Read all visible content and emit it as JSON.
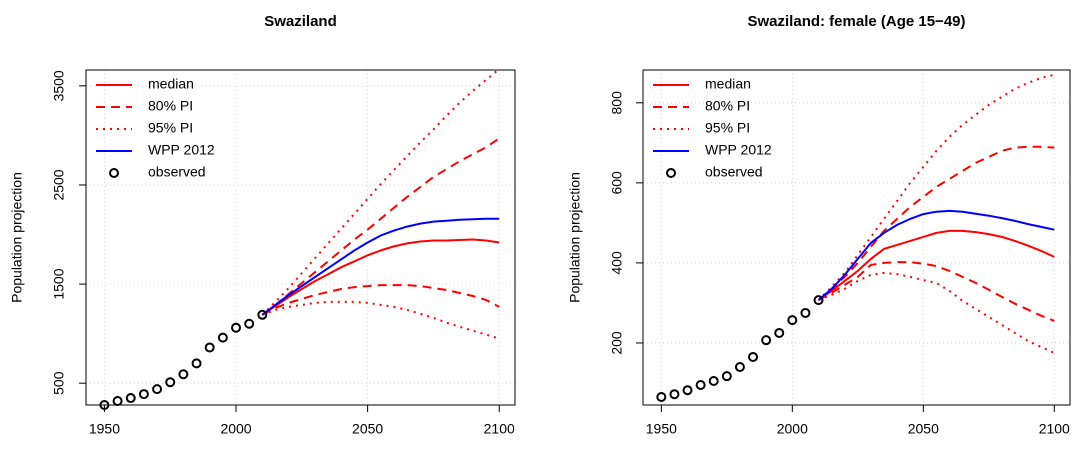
{
  "chart_data": [
    {
      "type": "line",
      "title": "Swaziland",
      "ylabel": "Population projection",
      "xlim": [
        1943,
        2106
      ],
      "xticks": [
        1950,
        2000,
        2050,
        2100
      ],
      "ylim": [
        280,
        3660
      ],
      "yticks": [
        500,
        1500,
        2500,
        3500
      ],
      "grid": true,
      "legend": "top-left",
      "series": [
        {
          "name": "median",
          "color": "#ff0000",
          "style": "solid",
          "x": [
            2010,
            2015,
            2020,
            2025,
            2030,
            2035,
            2040,
            2045,
            2050,
            2055,
            2060,
            2065,
            2070,
            2075,
            2080,
            2085,
            2090,
            2095,
            2100
          ],
          "values": [
            1190,
            1280,
            1370,
            1450,
            1530,
            1600,
            1670,
            1730,
            1790,
            1840,
            1880,
            1910,
            1930,
            1940,
            1940,
            1945,
            1950,
            1940,
            1920
          ]
        },
        {
          "name": "80% PI",
          "color": "#ff0000",
          "style": "dashed",
          "x": [
            2010,
            2015,
            2020,
            2025,
            2030,
            2035,
            2040,
            2045,
            2050,
            2055,
            2060,
            2065,
            2070,
            2075,
            2080,
            2085,
            2090,
            2095,
            2100
          ],
          "upper": [
            1190,
            1290,
            1400,
            1510,
            1620,
            1730,
            1840,
            1950,
            2050,
            2160,
            2270,
            2380,
            2480,
            2580,
            2660,
            2740,
            2810,
            2880,
            2970
          ],
          "lower": [
            1190,
            1260,
            1310,
            1350,
            1390,
            1420,
            1450,
            1470,
            1480,
            1490,
            1490,
            1490,
            1480,
            1460,
            1440,
            1410,
            1380,
            1340,
            1270
          ]
        },
        {
          "name": "95% PI",
          "color": "#ff0000",
          "style": "dotted",
          "x": [
            2010,
            2015,
            2020,
            2025,
            2030,
            2035,
            2040,
            2045,
            2050,
            2055,
            2060,
            2065,
            2070,
            2075,
            2080,
            2085,
            2090,
            2095,
            2100
          ],
          "upper": [
            1190,
            1320,
            1460,
            1610,
            1760,
            1910,
            2060,
            2210,
            2360,
            2510,
            2650,
            2790,
            2930,
            3060,
            3200,
            3330,
            3450,
            3560,
            3670
          ],
          "lower": [
            1190,
            1240,
            1270,
            1290,
            1310,
            1320,
            1320,
            1320,
            1310,
            1290,
            1270,
            1240,
            1200,
            1160,
            1110,
            1070,
            1030,
            990,
            950
          ]
        },
        {
          "name": "WPP 2012",
          "color": "#0000ff",
          "style": "solid",
          "x": [
            2010,
            2015,
            2020,
            2025,
            2030,
            2035,
            2040,
            2045,
            2050,
            2055,
            2060,
            2065,
            2070,
            2075,
            2080,
            2085,
            2090,
            2095,
            2100
          ],
          "values": [
            1190,
            1290,
            1390,
            1480,
            1570,
            1660,
            1750,
            1840,
            1920,
            1990,
            2040,
            2080,
            2110,
            2130,
            2140,
            2150,
            2155,
            2160,
            2160
          ]
        },
        {
          "name": "observed",
          "color": "#000000",
          "style": "points",
          "x": [
            1950,
            1955,
            1960,
            1965,
            1970,
            1975,
            1980,
            1985,
            1990,
            1995,
            2000,
            2005,
            2010
          ],
          "values": [
            280,
            320,
            350,
            390,
            440,
            510,
            590,
            700,
            860,
            960,
            1060,
            1100,
            1190
          ]
        }
      ]
    },
    {
      "type": "line",
      "title": "Swaziland: female (Age 15−49)",
      "ylabel": "Population projection",
      "xlim": [
        1943,
        2106
      ],
      "xticks": [
        1950,
        2000,
        2050,
        2100
      ],
      "ylim": [
        45,
        882
      ],
      "yticks": [
        200,
        400,
        600,
        800
      ],
      "grid": true,
      "legend": "top-left",
      "series": [
        {
          "name": "median",
          "color": "#ff0000",
          "style": "solid",
          "x": [
            2010,
            2015,
            2020,
            2025,
            2030,
            2035,
            2040,
            2045,
            2050,
            2055,
            2060,
            2065,
            2070,
            2075,
            2080,
            2085,
            2090,
            2095,
            2100
          ],
          "values": [
            307,
            330,
            355,
            380,
            410,
            435,
            445,
            455,
            465,
            475,
            480,
            480,
            477,
            472,
            465,
            455,
            443,
            430,
            415
          ]
        },
        {
          "name": "80% PI",
          "color": "#ff0000",
          "style": "dashed",
          "x": [
            2010,
            2015,
            2020,
            2025,
            2030,
            2035,
            2040,
            2045,
            2050,
            2055,
            2060,
            2065,
            2070,
            2075,
            2080,
            2085,
            2090,
            2095,
            2100
          ],
          "upper": [
            307,
            335,
            365,
            400,
            440,
            480,
            510,
            540,
            565,
            590,
            610,
            630,
            650,
            665,
            680,
            688,
            690,
            690,
            688
          ],
          "lower": [
            307,
            325,
            345,
            365,
            395,
            400,
            402,
            402,
            398,
            392,
            380,
            365,
            350,
            333,
            315,
            298,
            283,
            268,
            255
          ]
        },
        {
          "name": "95% PI",
          "color": "#ff0000",
          "style": "dotted",
          "x": [
            2010,
            2015,
            2020,
            2025,
            2030,
            2035,
            2040,
            2045,
            2050,
            2055,
            2060,
            2065,
            2070,
            2075,
            2080,
            2085,
            2090,
            2095,
            2100
          ],
          "upper": [
            307,
            340,
            375,
            420,
            465,
            510,
            555,
            600,
            640,
            680,
            715,
            745,
            770,
            795,
            815,
            835,
            850,
            862,
            870
          ],
          "lower": [
            307,
            320,
            335,
            355,
            370,
            375,
            372,
            365,
            357,
            350,
            330,
            305,
            285,
            265,
            245,
            225,
            205,
            190,
            175
          ]
        },
        {
          "name": "WPP 2012",
          "color": "#0000ff",
          "style": "solid",
          "x": [
            2010,
            2015,
            2020,
            2025,
            2030,
            2035,
            2040,
            2045,
            2050,
            2055,
            2060,
            2065,
            2070,
            2075,
            2080,
            2085,
            2090,
            2095,
            2100
          ],
          "values": [
            307,
            335,
            370,
            410,
            450,
            475,
            495,
            510,
            522,
            528,
            530,
            528,
            523,
            518,
            512,
            505,
            497,
            490,
            483
          ]
        },
        {
          "name": "observed",
          "color": "#000000",
          "style": "points",
          "x": [
            1950,
            1955,
            1960,
            1965,
            1970,
            1975,
            1980,
            1985,
            1990,
            1995,
            2000,
            2005,
            2010
          ],
          "values": [
            65,
            72,
            82,
            95,
            105,
            117,
            140,
            165,
            207,
            225,
            257,
            275,
            307
          ]
        }
      ]
    }
  ]
}
